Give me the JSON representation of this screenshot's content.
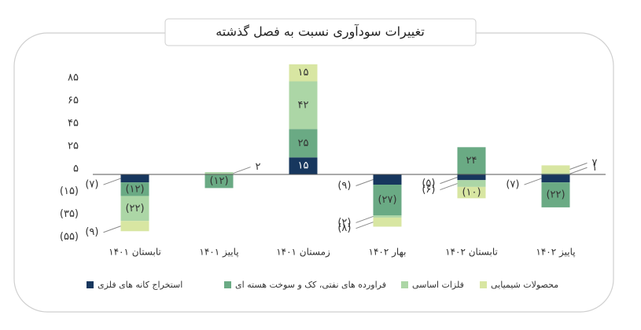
{
  "chart_data": {
    "type": "bar",
    "stacked": true,
    "title": "تغییرات سودآوری نسبت به فصل گذشته",
    "categories": [
      "تابستان ۱۴۰۱",
      "پاییز ۱۴۰۱",
      "زمستان ۱۴۰۱",
      "بهار ۱۴۰۲",
      "تابستان ۱۴۰۲",
      "پاییز ۱۴۰۲"
    ],
    "series": [
      {
        "name": "استخراج کانه های فلزی",
        "color": "#17375e",
        "values": [
          -7,
          null,
          15,
          -9,
          -5,
          -7
        ],
        "value_labels": [
          "(۷)",
          null,
          "۱۵",
          "(۹)",
          "(۵)",
          "(۷)"
        ]
      },
      {
        "name": "فراورده های نفتی، کک و سوخت هسته ای",
        "color": "#6aaa84",
        "values": [
          -12,
          -12,
          25,
          -27,
          24,
          -22
        ],
        "value_labels": [
          "(۱۲)",
          "(۱۲)",
          "۲۵",
          "(۲۷)",
          "۲۴",
          "(۲۲)"
        ]
      },
      {
        "name": "فلزات اساسی",
        "color": "#acd6a6",
        "values": [
          -22,
          2,
          42,
          -2,
          -6,
          1
        ],
        "value_labels": [
          "(۲۲)",
          "۲",
          "۴۲",
          "(۲)",
          "(۶)",
          "۱"
        ]
      },
      {
        "name": "محصولات شیمیایی",
        "color": "#d8e6a2",
        "values": [
          -9,
          null,
          15,
          -8,
          -10,
          7
        ],
        "value_labels": [
          "(۹)",
          null,
          "۱۵",
          "(۸)",
          "(۱۰)",
          "۷"
        ]
      }
    ],
    "ylim": [
      -60,
      100
    ],
    "yticks": [
      {
        "value": 85,
        "label": "۸۵"
      },
      {
        "value": 65,
        "label": "۶۵"
      },
      {
        "value": 45,
        "label": "۴۵"
      },
      {
        "value": 25,
        "label": "۲۵"
      },
      {
        "value": 5,
        "label": "۵"
      },
      {
        "value": -15,
        "label": "(۱۵)"
      },
      {
        "value": -35,
        "label": "(۳۵)"
      },
      {
        "value": -55,
        "label": "(۵۵)"
      }
    ],
    "grid": false,
    "legend": "bottom"
  }
}
